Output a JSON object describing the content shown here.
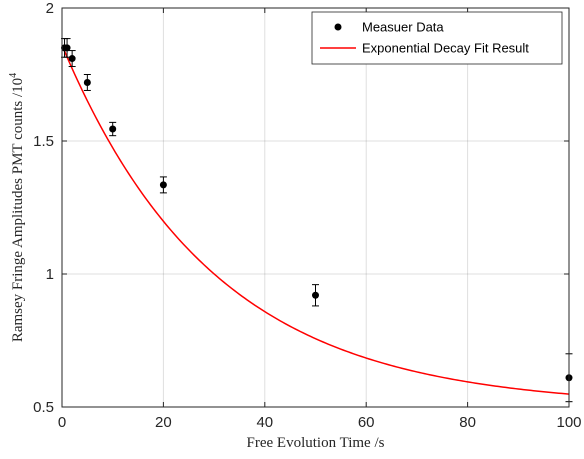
{
  "chart_data": {
    "type": "scatter",
    "title": "",
    "xlabel": "Free Evolution Time /s",
    "ylabel": "Ramsey Fringe Amplitudes PMT counts /10",
    "ylabel_exponent": "4",
    "xlim": [
      0,
      100
    ],
    "ylim": [
      0.5,
      2
    ],
    "xticks": [
      "0",
      "20",
      "40",
      "60",
      "80",
      "100"
    ],
    "yticks": [
      "0.5",
      "1",
      "1.5",
      "2"
    ],
    "grid": true,
    "legend_position": "top-right",
    "series": [
      {
        "name": "Measuer Data",
        "kind": "scatter-errorbar",
        "color": "#000000",
        "x": [
          0.5,
          1,
          2,
          5,
          10,
          20,
          50,
          100
        ],
        "y": [
          1.85,
          1.85,
          1.81,
          1.72,
          1.545,
          1.335,
          0.92,
          0.61
        ],
        "err": [
          0.035,
          0.035,
          0.03,
          0.03,
          0.025,
          0.03,
          0.04,
          0.09
        ]
      },
      {
        "name": "Exponential Decay Fit Result",
        "kind": "line",
        "color": "#ff0000",
        "model": {
          "offset": 0.5,
          "amplitude": 1.36,
          "tau": 30
        }
      }
    ]
  }
}
